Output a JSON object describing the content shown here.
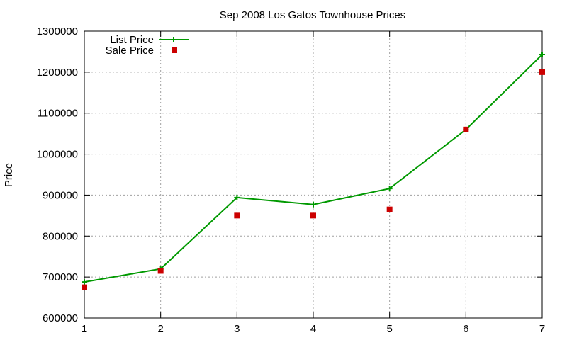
{
  "chart_data": {
    "type": "line",
    "title": "Sep 2008 Los Gatos Townhouse Prices",
    "xlabel": "",
    "ylabel": "Price",
    "x": [
      1,
      2,
      3,
      4,
      5,
      6,
      7
    ],
    "xlim": [
      1,
      7
    ],
    "ylim": [
      600000,
      1300000
    ],
    "xticks": [
      "1",
      "2",
      "3",
      "4",
      "5",
      "6",
      "7"
    ],
    "yticks": [
      "600000",
      "700000",
      "800000",
      "900000",
      "1000000",
      "1100000",
      "1200000",
      "1300000"
    ],
    "grid": true,
    "legend_position": "top-left",
    "series": [
      {
        "name": "List Price",
        "style": "line-with-plus-markers",
        "color": "#009900",
        "values": [
          688000,
          720000,
          894000,
          877000,
          916000,
          1060000,
          1243000
        ]
      },
      {
        "name": "Sale Price",
        "style": "square-points",
        "color": "#cc0000",
        "values": [
          675000,
          715000,
          850000,
          850000,
          865000,
          1060000,
          1200000
        ]
      }
    ]
  }
}
